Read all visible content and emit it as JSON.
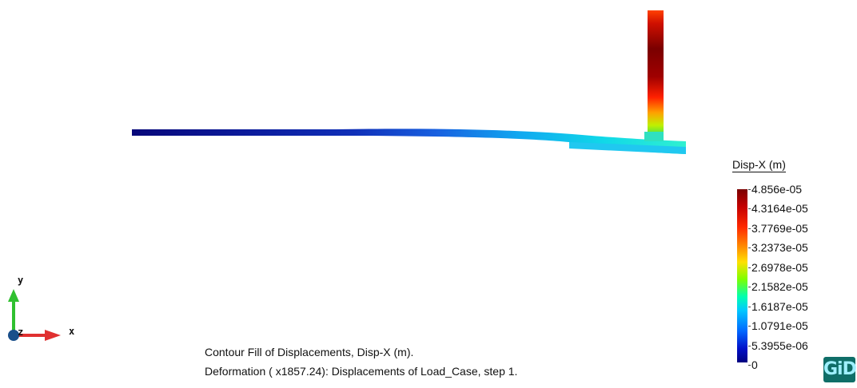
{
  "legend": {
    "title": "Disp-X (m)",
    "ticks": [
      "4.856e-05",
      "4.3164e-05",
      "3.7769e-05",
      "3.2373e-05",
      "2.6978e-05",
      "2.1582e-05",
      "1.6187e-05",
      "1.0791e-05",
      "5.3955e-06",
      "0"
    ]
  },
  "caption": {
    "line1": "Contour Fill of Displacements, Disp-X (m).",
    "line2": "Deformation ( x1857.24): Displacements of Load_Case, step 1."
  },
  "axes": {
    "x": "x",
    "y": "y",
    "z": "z",
    "colors": {
      "x": "#e03030",
      "y": "#30c030",
      "z": "#1a4f8a"
    }
  },
  "logo": {
    "text": "GiD"
  },
  "colors": {
    "beam_left": "#0a0a7a",
    "beam_mid": "#2060e0",
    "beam_right": "#20e0e0",
    "column_top": "#8b0000",
    "column_bottom": "#20e040"
  }
}
